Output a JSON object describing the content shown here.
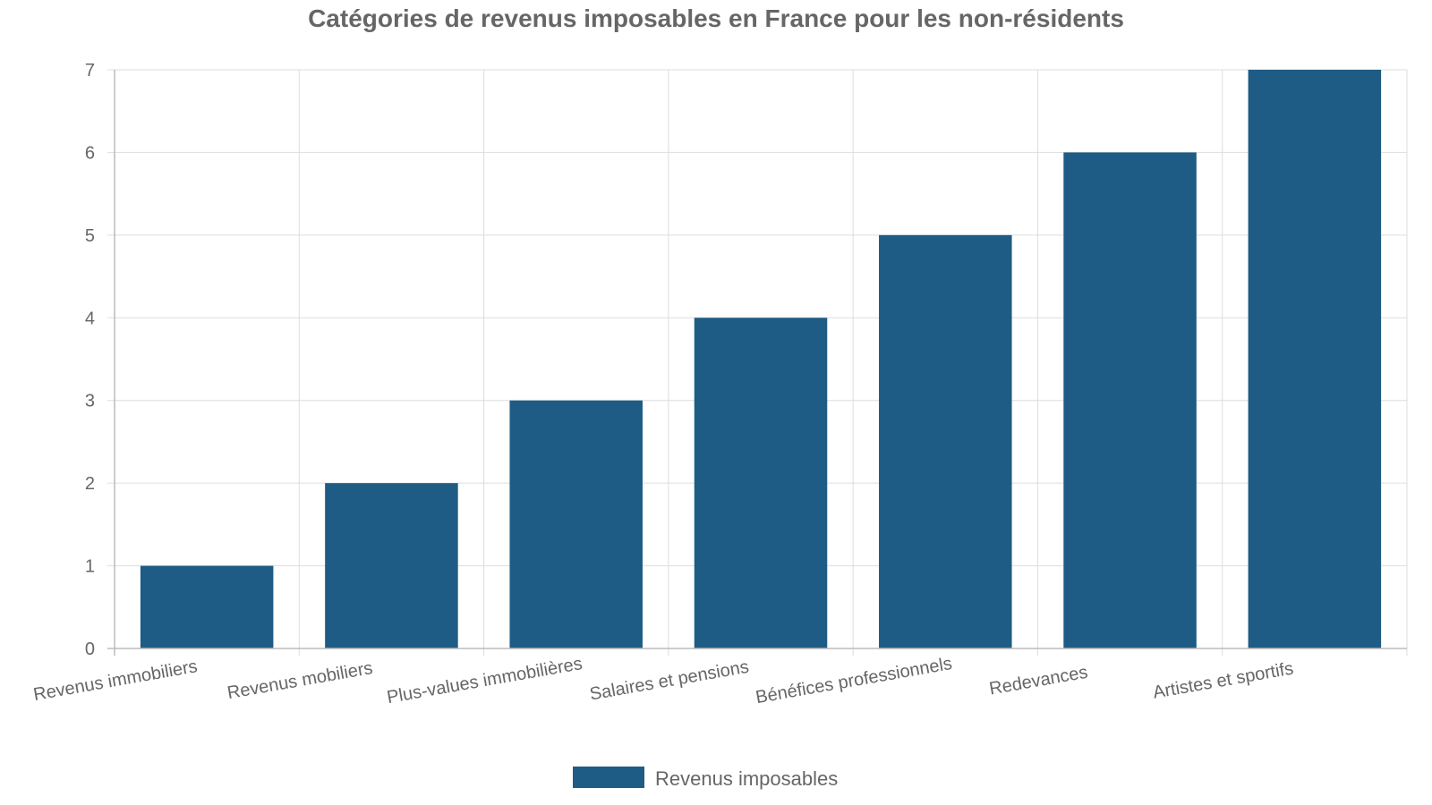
{
  "chart_data": {
    "type": "bar",
    "title": "Catégories de revenus imposables en France pour les non-résidents",
    "categories": [
      "Revenus immobiliers",
      "Revenus mobiliers",
      "Plus-values immobilières",
      "Salaires et pensions",
      "Bénéfices professionnels",
      "Redevances",
      "Artistes et sportifs"
    ],
    "series": [
      {
        "name": "Revenus imposables",
        "values": [
          1,
          2,
          3,
          4,
          5,
          6,
          7
        ]
      }
    ],
    "ylim": [
      0,
      7
    ],
    "yticks": [
      "0",
      "1",
      "2",
      "3",
      "4",
      "5",
      "6",
      "7"
    ],
    "grid": true,
    "legend_position": "bottom",
    "colors": {
      "bar": "#1f5c85",
      "grid": "#dddddd",
      "axis": "#bbbbbb",
      "text": "#666666"
    }
  }
}
